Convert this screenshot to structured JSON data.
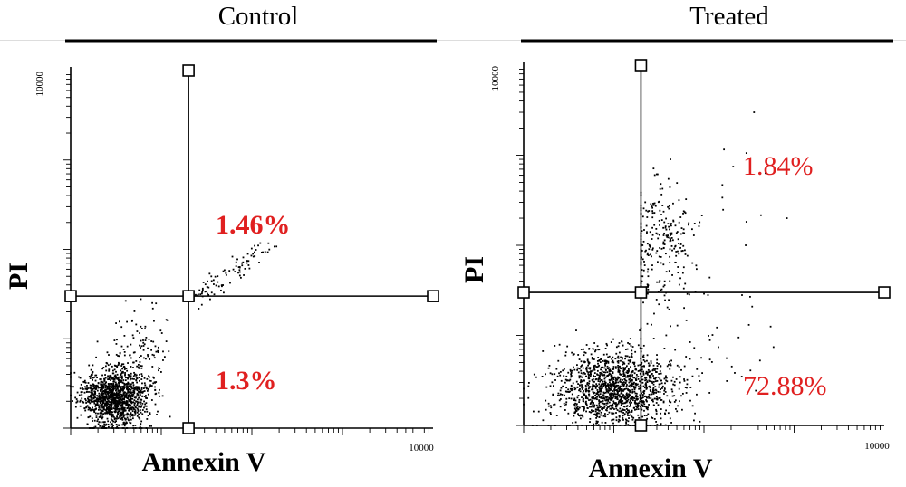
{
  "chart_data": [
    {
      "type": "scatter",
      "title": "Control",
      "xlabel": "Annexin V",
      "ylabel": "PI",
      "x_scale": "log",
      "y_scale": "log",
      "x_tick_label": "10000",
      "y_tick_label": "10000",
      "quadrant_percentages": {
        "upper_right": "1.46%",
        "lower_right": "1.3%"
      },
      "gate": {
        "x": 20,
        "y": 30
      },
      "annotation_color": "#e02020",
      "seed": 11,
      "clusters": [
        {
          "n": 1300,
          "cx": 3.0,
          "cy": 2.2,
          "sx": 0.18,
          "sy": 0.16,
          "xmin": 1,
          "xmax": 18,
          "ymin": 1,
          "ymax": 14
        },
        {
          "n": 150,
          "cx": 6.0,
          "cy": 6.0,
          "sx": 0.2,
          "sy": 0.3,
          "xmin": 1,
          "xmax": 30,
          "ymin": 1,
          "ymax": 40
        }
      ],
      "diagonal": {
        "n": 90,
        "x0": 20,
        "y0": 25,
        "x1": 160,
        "y1": 110,
        "spread": 0.06
      }
    },
    {
      "type": "scatter",
      "title": "Treated",
      "xlabel": "Annexin V",
      "ylabel": "PI",
      "x_scale": "log",
      "y_scale": "log",
      "x_tick_label": "10000",
      "y_tick_label": "10000",
      "quadrant_percentages": {
        "upper_right": "1.84%",
        "lower_right": "72.88%"
      },
      "gate": {
        "x": 20,
        "y": 30
      },
      "annotation_color": "#e02020",
      "seed": 23,
      "clusters": [
        {
          "n": 1500,
          "cx": 10.0,
          "cy": 2.5,
          "sx": 0.33,
          "sy": 0.22,
          "xmin": 1,
          "xmax": 90,
          "ymin": 1,
          "ymax": 25
        },
        {
          "n": 280,
          "cx": 33.0,
          "cy": 100.0,
          "sx": 0.2,
          "sy": 0.35,
          "xmin": 20,
          "xmax": 160,
          "ymin": 12,
          "ymax": 900
        },
        {
          "n": 40,
          "cx": 120.0,
          "cy": 8.0,
          "sx": 0.35,
          "sy": 0.35,
          "xmin": 20,
          "xmax": 900,
          "ymin": 2,
          "ymax": 28
        },
        {
          "n": 12,
          "cx": 300.0,
          "cy": 400.0,
          "sx": 0.3,
          "sy": 0.3,
          "xmin": 160,
          "xmax": 900,
          "ymin": 100,
          "ymax": 3000
        }
      ]
    }
  ]
}
